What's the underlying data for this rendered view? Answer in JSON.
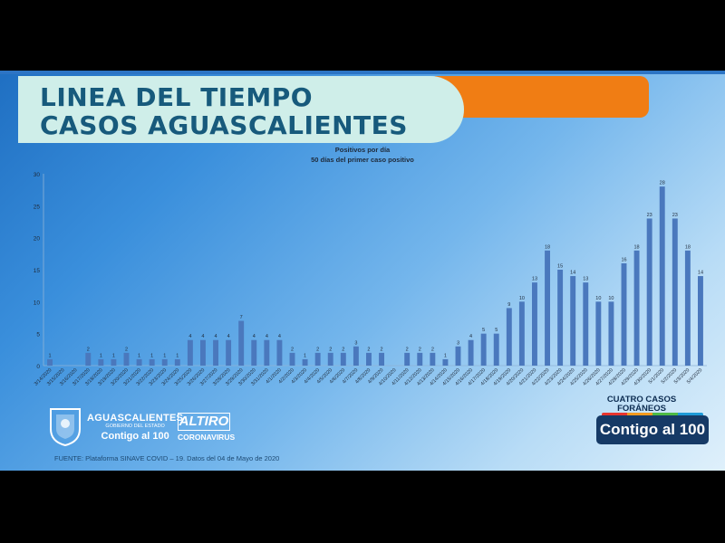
{
  "slide": {
    "title_line1": "LINEA DEL TIEMPO",
    "title_line2": "CASOS AGUASCALIENTES",
    "source": "FUENTE: Plataforma SINAVE COVID – 19. Datos del 04 de Mayo de 2020",
    "note_line1": "CUATRO CASOS",
    "note_line2": "FORÁNEOS",
    "badge": "Contigo al 100",
    "logo_ags": {
      "line1": "AGUASCALIENTES",
      "line2": "GOBIERNO DEL ESTADO",
      "line3": "Contigo al 100"
    },
    "logo_altiro": {
      "line1": "ALTIRO",
      "line2": "CORONAVIRUS"
    },
    "colors": {
      "banner_bg": "#cfeee9",
      "banner_text": "#175a7c",
      "accent_orange": "#f07d14",
      "bar": "#4a78bd"
    }
  },
  "chart_data": {
    "type": "bar",
    "title": "Positivos por día",
    "subtitle": "50 días del primer caso positivo",
    "ylim": [
      0,
      30
    ],
    "yticks": [
      "0",
      "5",
      "10",
      "15",
      "20",
      "25",
      "30"
    ],
    "categories": [
      "3/14/2020",
      "3/15/2020",
      "3/16/2020",
      "3/17/2020",
      "3/18/2020",
      "3/19/2020",
      "3/20/2020",
      "3/21/2020",
      "3/22/2020",
      "3/23/2020",
      "3/24/2020",
      "3/25/2020",
      "3/26/2020",
      "3/27/2020",
      "3/28/2020",
      "3/29/2020",
      "3/30/2020",
      "3/31/2020",
      "4/1/2020",
      "4/2/2020",
      "4/3/2020",
      "4/4/2020",
      "4/5/2020",
      "4/6/2020",
      "4/7/2020",
      "4/8/2020",
      "4/9/2020",
      "4/10/2020",
      "4/11/2020",
      "4/12/2020",
      "4/13/2020",
      "4/14/2020",
      "4/15/2020",
      "4/16/2020",
      "4/17/2020",
      "4/18/2020",
      "4/19/2020",
      "4/20/2020",
      "4/21/2020",
      "4/22/2020",
      "4/23/2020",
      "4/24/2020",
      "4/25/2020",
      "4/26/2020",
      "4/27/2020",
      "4/28/2020",
      "4/29/2020",
      "4/30/2020",
      "5/1/2020",
      "5/2/2020",
      "5/3/2020",
      "5/4/2020"
    ],
    "values": [
      1,
      0,
      0,
      2,
      1,
      1,
      2,
      1,
      1,
      1,
      1,
      4,
      4,
      4,
      4,
      7,
      4,
      4,
      4,
      2,
      1,
      2,
      2,
      2,
      3,
      2,
      2,
      0,
      2,
      2,
      2,
      1,
      3,
      4,
      5,
      5,
      9,
      10,
      13,
      18,
      15,
      14,
      13,
      10,
      10,
      16,
      18,
      23,
      28,
      23,
      18,
      14
    ],
    "data_labels": [
      "1",
      "",
      "",
      "2",
      "1",
      "1",
      "2",
      "1",
      "1",
      "1",
      "1",
      "4",
      "4",
      "4",
      "4",
      "7",
      "4",
      "4",
      "4",
      "2",
      "1",
      "2",
      "2",
      "2",
      "3",
      "2",
      "2",
      "",
      "2",
      "2",
      "2",
      "1",
      "3",
      "4",
      "5",
      "5",
      "9",
      "10",
      "13",
      "18",
      "15",
      "14",
      "13",
      "10",
      "10",
      "16",
      "18",
      "23",
      "28",
      "23",
      "18",
      "14"
    ],
    "x_tick_labels": [
      "3/14/2020",
      "3/15/2020",
      "3/16/2020",
      "3/17/2020",
      "3/18/2020",
      "3/19/2020",
      "3/20/2020",
      "3/21/2020",
      "3/22/2020",
      "3/23/2020",
      "3/24/2020",
      "3/25/2020",
      "3/26/2020",
      "3/27/2020",
      "3/28/2020",
      "3/29/2020",
      "3/30/2020",
      "3/31/2020",
      "4/1/2020",
      "4/2/2020",
      "4/3/2020",
      "4/4/2020",
      "4/5/2020",
      "4/6/2020",
      "4/7/2020",
      "4/8/2020",
      "4/9/2020",
      "4/10/2020",
      "4/11/2020",
      "4/12/2020",
      "4/13/2020",
      "4/14/2020",
      "4/15/2020",
      "4/16/2020",
      "4/17/2020",
      "4/18/2020",
      "4/19/2020",
      "4/20/2020",
      "4/21/2020",
      "4/22/2020",
      "4/23/2020",
      "4/24/2020",
      "4/25/2020",
      "4/26/2020",
      "4/27/2020",
      "4/28/2020",
      "4/29/2020",
      "4/30/2020",
      "5/1/2020",
      "5/2/2020",
      "5/3/2020",
      "5/4/2020"
    ],
    "grid": false,
    "legend": "none"
  }
}
